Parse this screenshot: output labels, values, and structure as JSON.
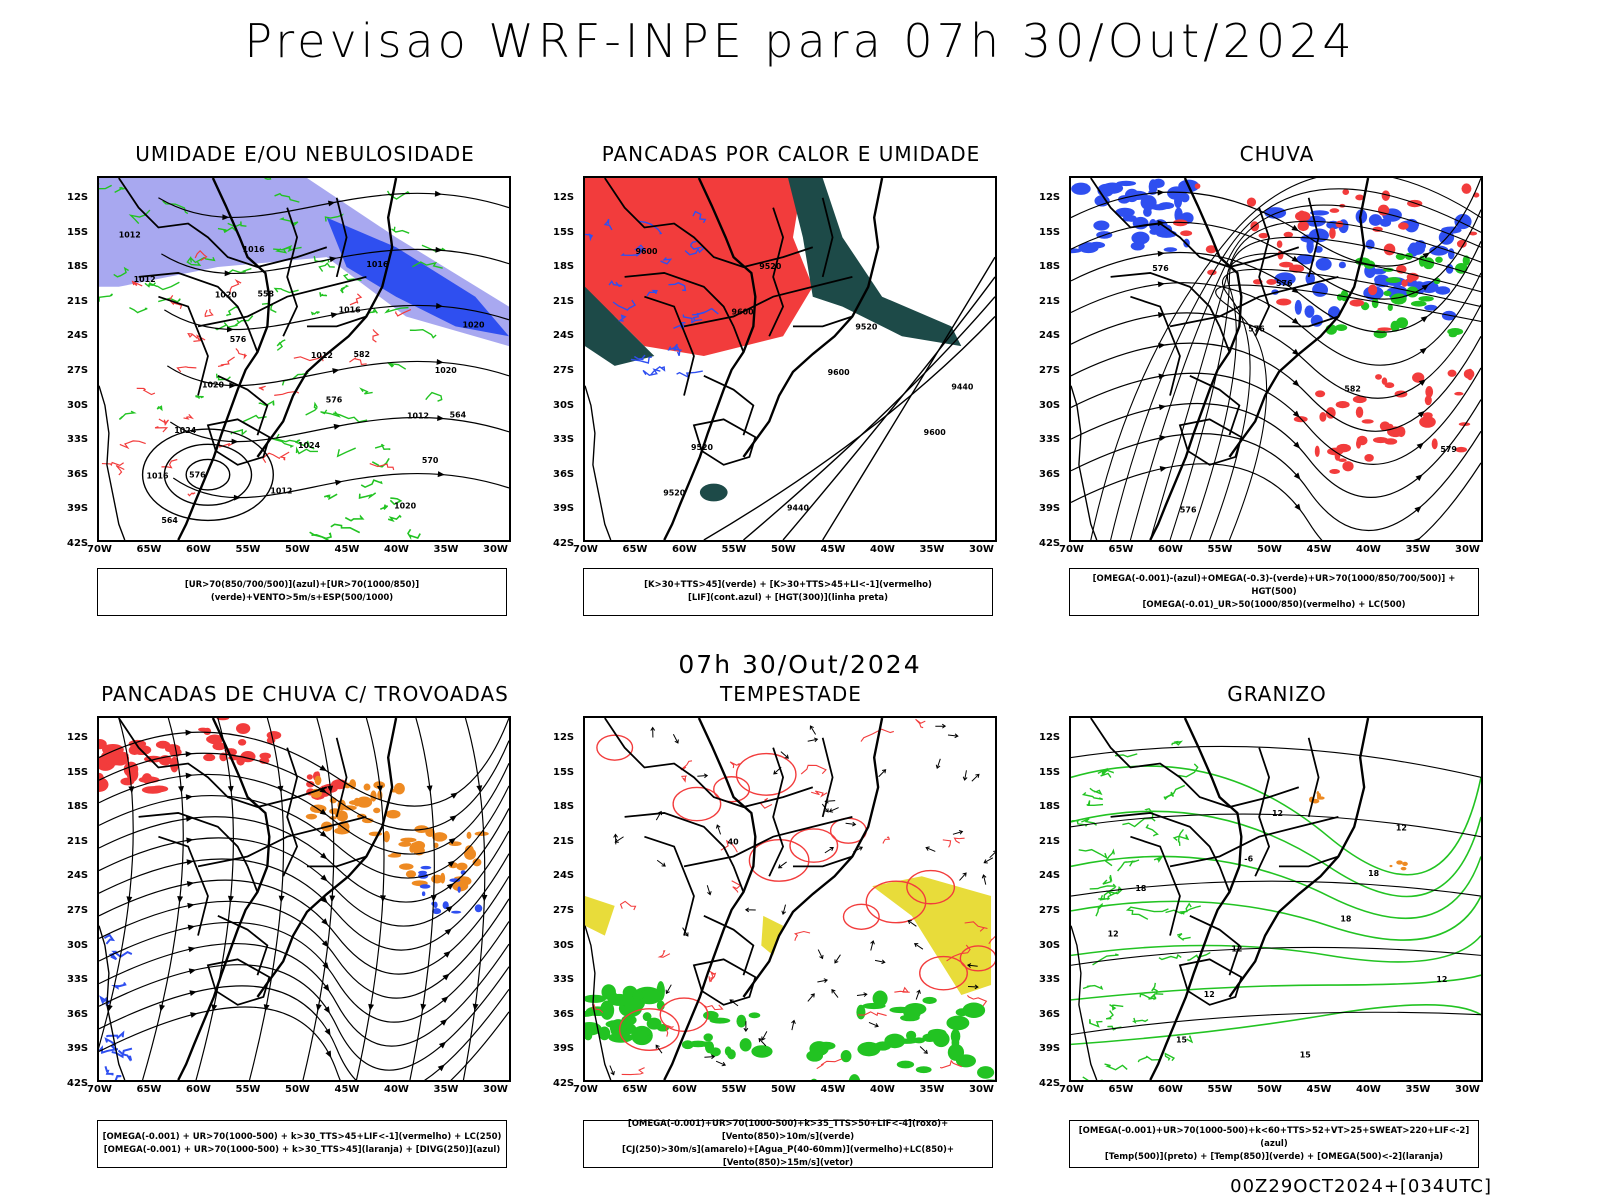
{
  "title": "Previsao WRF-INPE  para 07h 30/Out/2024",
  "subtitle": "07h 30/Out/2024",
  "footer": "00Z29OCT2024+[034UTC]",
  "lat_labels": [
    "12S",
    "15S",
    "18S",
    "21S",
    "24S",
    "27S",
    "30S",
    "33S",
    "36S",
    "39S",
    "42S"
  ],
  "lon_labels": [
    "70W",
    "65W",
    "60W",
    "55W",
    "50W",
    "45W",
    "40W",
    "35W",
    "30W"
  ],
  "colors": {
    "red": "#f23c3c",
    "blue": "#2f4ff0",
    "lightblue": "#a8a8f0",
    "green": "#22c322",
    "darkteal": "#1d4a48",
    "orange": "#ee8a22",
    "yellow": "#e8dc3a",
    "black": "#000000"
  },
  "panels": [
    {
      "title": "UMIDADE E/OU NEBULOSIDADE",
      "legend": [
        "[UR>70(850/700/500)](azul)+[UR>70(1000/850)](verde)+VENTO>5m/s+ESP(500/1000)"
      ],
      "contour_labels": [
        "1012",
        "1020",
        "1012",
        "1012",
        "1016",
        "1016",
        "1016",
        "1020",
        "1024",
        "1012",
        "1016",
        "1020",
        "1020",
        "1024",
        "1020",
        "1012",
        "576",
        "576",
        "570",
        "564",
        "558",
        "582",
        "564",
        "576"
      ]
    },
    {
      "title": "PANCADAS POR CALOR E UMIDADE",
      "legend": [
        "[K>30+TTS>45](verde) + [K>30+TTS>45+LI<-1](vermelho)",
        "[LIF](cont.azul) + [HGT(300)](linha preta)"
      ],
      "contour_labels": [
        "9600",
        "9600",
        "9600",
        "9600",
        "9520",
        "9520",
        "9520",
        "9440",
        "9520",
        "9440"
      ]
    },
    {
      "title": "CHUVA",
      "legend": [
        "[OMEGA(-0.001)-(azul)+OMEGA(-0.3)-(verde)+UR>70(1000/850/700/500)] + HGT(500)",
        "[OMEGA(-0.01)_UR>50(1000/850)(vermelho) + LC(500)"
      ],
      "contour_labels": [
        "576",
        "576",
        "582",
        "579",
        "576",
        "576"
      ]
    },
    {
      "title": "PANCADAS DE CHUVA C/ TROVOADAS",
      "legend": [
        "[OMEGA(-0.001) + UR>70(1000-500) + k>30_TTS>45+LIF<-1](vermelho) + LC(250)",
        "[OMEGA(-0.001) + UR>70(1000-500) + k>30_TTS>45](laranja) + [DIVG(250)](azul)"
      ],
      "contour_labels": []
    },
    {
      "title": "TEMPESTADE",
      "legend": [
        "[OMEGA(-0.001)+UR>70(1000-500)+k>35_TTS>50+LIF<-4](roxo)+[Vento(850)>10m/s](verde)",
        "[CJ(250)>30m/s](amarelo)+[Agua_P(40-60mm)](vermelho)+LC(850)+[Vento(850)>15m/s](vetor)"
      ],
      "contour_labels": [
        "40"
      ]
    },
    {
      "title": "GRANIZO",
      "legend": [
        "[OMEGA(-0.001)+UR>70(1000-500)+k<60+TTS>52+VT>25+SWEAT>220+LIF<-2](azul)",
        "[Temp(500)](preto) + [Temp(850)](verde) + [OMEGA(500)<-2](laranja)"
      ],
      "contour_labels": [
        "-6",
        "18",
        "12",
        "15",
        "12",
        "18",
        "12",
        "12",
        "15",
        "12",
        "18",
        "12"
      ]
    }
  ]
}
